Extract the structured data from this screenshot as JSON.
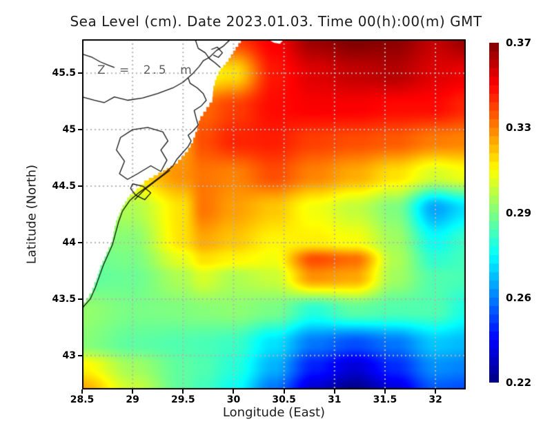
{
  "title": "Sea Level (cm). Date 2023.01.03. Time 00(h):00(m) GMT",
  "annotation": "Z = 2.5 m",
  "colors": {
    "background": "#ffffff",
    "frame": "#000000",
    "grid": "#b3b3b3",
    "land": "#ffffff",
    "coastline": "#111111",
    "title_text": "#1c1c1c",
    "annotation_text": "#5f5f5f"
  },
  "chart_data": {
    "type": "heatmap",
    "title": "Sea Level (cm). Date 2023.01.03. Time 00(h):00(m) GMT",
    "xlabel": "Longitude (East)",
    "ylabel": "Latitude (North)",
    "xlim": [
      28.5,
      32.3
    ],
    "ylim": [
      42.7,
      45.8
    ],
    "grid": "dotted",
    "colormap": "jet",
    "x_ticks": [
      {
        "value": 28.5,
        "label": "28.5"
      },
      {
        "value": 29,
        "label": "29"
      },
      {
        "value": 29.5,
        "label": "29.5"
      },
      {
        "value": 30,
        "label": "30"
      },
      {
        "value": 30.5,
        "label": "30.5"
      },
      {
        "value": 31,
        "label": "31"
      },
      {
        "value": 31.5,
        "label": "31.5"
      },
      {
        "value": 32,
        "label": "32"
      }
    ],
    "y_ticks": [
      {
        "value": 45.5,
        "label": "45.5"
      },
      {
        "value": 45,
        "label": "45"
      },
      {
        "value": 44.5,
        "label": "44.5"
      },
      {
        "value": 44,
        "label": "44"
      },
      {
        "value": 43.5,
        "label": "43.5"
      },
      {
        "value": 43,
        "label": "43"
      }
    ],
    "colorbar": {
      "position": "right",
      "min": 0.22,
      "max": 0.37,
      "tick_labels": [
        "0.37",
        "0.33",
        "0.29",
        "0.26",
        "0.22"
      ],
      "bands": 40
    },
    "lons": [
      28.5,
      29.0,
      29.5,
      29.7,
      30.0,
      30.4,
      30.8,
      31.2,
      31.6,
      32.0,
      32.3
    ],
    "lats": [
      45.8,
      45.5,
      45.2,
      44.9,
      44.6,
      44.3,
      44.0,
      43.85,
      43.7,
      43.4,
      43.1,
      42.9,
      42.7
    ],
    "values": [
      [
        0.33,
        0.33,
        0.335,
        0.338,
        0.342,
        0.352,
        0.366,
        0.37,
        0.368,
        0.36,
        0.366
      ],
      [
        0.325,
        0.325,
        0.315,
        0.314,
        0.318,
        0.348,
        0.356,
        0.36,
        0.362,
        0.356,
        0.354
      ],
      [
        0.32,
        0.32,
        0.33,
        0.336,
        0.342,
        0.35,
        0.352,
        0.352,
        0.35,
        0.35,
        0.346
      ],
      [
        0.32,
        0.322,
        0.328,
        0.34,
        0.346,
        0.347,
        0.342,
        0.34,
        0.338,
        0.333,
        0.332
      ],
      [
        0.315,
        0.318,
        0.33,
        0.334,
        0.332,
        0.34,
        0.332,
        0.326,
        0.318,
        0.308,
        0.312
      ],
      [
        0.3,
        0.302,
        0.318,
        0.334,
        0.328,
        0.322,
        0.312,
        0.305,
        0.295,
        0.263,
        0.272
      ],
      [
        0.295,
        0.296,
        0.318,
        0.326,
        0.322,
        0.315,
        0.316,
        0.313,
        0.3,
        0.278,
        0.285
      ],
      [
        0.292,
        0.294,
        0.31,
        0.318,
        0.315,
        0.312,
        0.34,
        0.335,
        0.302,
        0.283,
        0.286
      ],
      [
        0.29,
        0.292,
        0.302,
        0.308,
        0.302,
        0.306,
        0.33,
        0.327,
        0.3,
        0.288,
        0.287
      ],
      [
        0.298,
        0.294,
        0.295,
        0.296,
        0.297,
        0.294,
        0.282,
        0.29,
        0.288,
        0.288,
        0.28
      ],
      [
        0.296,
        0.29,
        0.288,
        0.287,
        0.285,
        0.272,
        0.256,
        0.25,
        0.256,
        0.268,
        0.266
      ],
      [
        0.315,
        0.3,
        0.29,
        0.288,
        0.282,
        0.265,
        0.243,
        0.233,
        0.245,
        0.26,
        0.258
      ],
      [
        0.326,
        0.306,
        0.29,
        0.286,
        0.278,
        0.256,
        0.232,
        0.222,
        0.234,
        0.252,
        0.25
      ]
    ],
    "coast": {
      "mask_polygon": [
        [
          28.5,
          45.8
        ],
        [
          30.1,
          45.8
        ],
        [
          30.02,
          45.7
        ],
        [
          29.95,
          45.6
        ],
        [
          29.87,
          45.52
        ],
        [
          29.83,
          45.44
        ],
        [
          29.8,
          45.34
        ],
        [
          29.79,
          45.24
        ],
        [
          29.73,
          45.16
        ],
        [
          29.67,
          45.08
        ],
        [
          29.64,
          44.98
        ],
        [
          29.6,
          44.88
        ],
        [
          29.55,
          44.8
        ],
        [
          29.45,
          44.7
        ],
        [
          29.3,
          44.62
        ],
        [
          29.16,
          44.55
        ],
        [
          29.07,
          44.48
        ],
        [
          28.97,
          44.4
        ],
        [
          28.9,
          44.3
        ],
        [
          28.85,
          44.2
        ],
        [
          28.82,
          44.1
        ],
        [
          28.8,
          44.0
        ],
        [
          28.74,
          43.88
        ],
        [
          28.68,
          43.76
        ],
        [
          28.64,
          43.65
        ],
        [
          28.6,
          43.55
        ],
        [
          28.54,
          43.47
        ],
        [
          28.5,
          43.42
        ]
      ],
      "mask_notch": [
        [
          30.34,
          45.8
        ],
        [
          30.5,
          45.8
        ],
        [
          30.46,
          45.76
        ],
        [
          30.4,
          45.77
        ]
      ],
      "lines": [
        [
          [
            29.97,
            45.8
          ],
          [
            29.9,
            45.74
          ],
          [
            29.83,
            45.7
          ],
          [
            29.76,
            45.64
          ],
          [
            29.7,
            45.61
          ],
          [
            29.66,
            45.56
          ],
          [
            29.6,
            45.5
          ],
          [
            29.55,
            45.46
          ],
          [
            29.57,
            45.41
          ],
          [
            29.64,
            45.37
          ],
          [
            29.7,
            45.32
          ],
          [
            29.73,
            45.26
          ],
          [
            29.68,
            45.21
          ],
          [
            29.61,
            45.17
          ],
          [
            29.63,
            45.1
          ],
          [
            29.65,
            45.04
          ],
          [
            29.6,
            44.99
          ],
          [
            29.55,
            44.95
          ],
          [
            29.58,
            44.9
          ],
          [
            29.55,
            44.85
          ],
          [
            29.49,
            44.79
          ],
          [
            29.44,
            44.74
          ],
          [
            29.4,
            44.68
          ],
          [
            29.3,
            44.6
          ],
          [
            29.18,
            44.52
          ],
          [
            29.06,
            44.44
          ],
          [
            28.97,
            44.37
          ],
          [
            28.9,
            44.28
          ],
          [
            28.86,
            44.18
          ],
          [
            28.83,
            44.08
          ],
          [
            28.8,
            43.98
          ],
          [
            28.76,
            43.9
          ],
          [
            28.71,
            43.8
          ],
          [
            28.67,
            43.7
          ],
          [
            28.63,
            43.6
          ],
          [
            28.58,
            43.5
          ],
          [
            28.52,
            43.44
          ],
          [
            28.5,
            43.41
          ]
        ],
        [
          [
            28.5,
            45.29
          ],
          [
            28.62,
            45.26
          ],
          [
            28.72,
            45.24
          ],
          [
            28.82,
            45.29
          ],
          [
            28.95,
            45.26
          ],
          [
            29.1,
            45.28
          ],
          [
            29.25,
            45.32
          ],
          [
            29.4,
            45.37
          ],
          [
            29.5,
            45.42
          ],
          [
            29.55,
            45.46
          ]
        ],
        [
          [
            29.62,
            45.8
          ],
          [
            29.65,
            45.72
          ],
          [
            29.72,
            45.68
          ],
          [
            29.76,
            45.63
          ],
          [
            29.82,
            45.59
          ],
          [
            29.87,
            45.55
          ]
        ],
        [
          [
            29.78,
            45.71
          ],
          [
            29.84,
            45.73
          ],
          [
            29.89,
            45.68
          ],
          [
            29.85,
            45.64
          ],
          [
            29.8,
            45.66
          ]
        ],
        [
          [
            28.5,
            45.67
          ],
          [
            28.6,
            45.64
          ],
          [
            28.68,
            45.6
          ],
          [
            28.76,
            45.57
          ],
          [
            28.82,
            45.55
          ]
        ],
        [
          [
            29.0,
            45.0
          ],
          [
            29.15,
            45.02
          ],
          [
            29.3,
            44.98
          ],
          [
            29.35,
            44.9
          ],
          [
            29.28,
            44.82
          ],
          [
            29.34,
            44.73
          ],
          [
            29.28,
            44.63
          ],
          [
            29.18,
            44.68
          ],
          [
            29.05,
            44.61
          ],
          [
            28.95,
            44.56
          ],
          [
            28.87,
            44.61
          ],
          [
            28.92,
            44.72
          ],
          [
            28.84,
            44.82
          ],
          [
            28.88,
            44.93
          ],
          [
            29.0,
            45.0
          ]
        ],
        [
          [
            29.37,
            44.64
          ],
          [
            29.25,
            44.56
          ],
          [
            29.12,
            44.47
          ],
          [
            29.02,
            44.38
          ]
        ],
        [
          [
            29.0,
            44.52
          ],
          [
            29.1,
            44.5
          ],
          [
            29.18,
            44.44
          ],
          [
            29.12,
            44.38
          ],
          [
            29.03,
            44.42
          ],
          [
            28.98,
            44.48
          ],
          [
            29.0,
            44.52
          ]
        ]
      ]
    }
  }
}
